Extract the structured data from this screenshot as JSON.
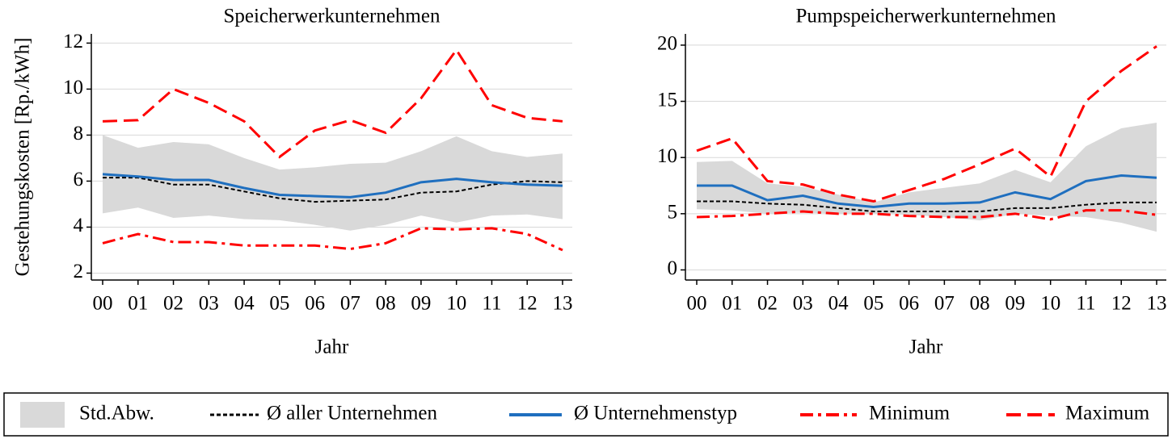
{
  "chart_data": [
    {
      "type": "line",
      "title": "Speicherwerkunternehmen",
      "xlabel": "Jahr",
      "ylabel": "Gestehungskosten [Rp./kWh]",
      "categories": [
        "00",
        "01",
        "02",
        "03",
        "04",
        "05",
        "06",
        "07",
        "08",
        "09",
        "10",
        "11",
        "12",
        "13"
      ],
      "ylim": [
        1.7,
        12.4
      ],
      "yticks": [
        2,
        4,
        6,
        8,
        10,
        12
      ],
      "grid": true,
      "series": [
        {
          "name": "Std.Abw.",
          "color": "#d9d9d9",
          "linestyle": "band",
          "upper": [
            8.0,
            7.45,
            7.7,
            7.6,
            7.0,
            6.5,
            6.6,
            6.75,
            6.8,
            7.3,
            7.95,
            7.3,
            7.05,
            7.2
          ],
          "lower": [
            4.6,
            4.85,
            4.4,
            4.5,
            4.35,
            4.3,
            4.1,
            3.85,
            4.1,
            4.5,
            4.2,
            4.5,
            4.55,
            4.35
          ]
        },
        {
          "name": "Ø aller Unternehmen",
          "color": "#000000",
          "linestyle": "dotted",
          "values": [
            6.15,
            6.15,
            5.85,
            5.85,
            5.55,
            5.25,
            5.1,
            5.15,
            5.2,
            5.5,
            5.55,
            5.85,
            6.0,
            5.95
          ]
        },
        {
          "name": "Ø Unternehmenstyp",
          "color": "#1f6fbf",
          "linestyle": "solid",
          "values": [
            6.3,
            6.2,
            6.05,
            6.05,
            5.7,
            5.4,
            5.35,
            5.3,
            5.5,
            5.95,
            6.1,
            5.95,
            5.85,
            5.8
          ]
        },
        {
          "name": "Minimum",
          "color": "#ff0000",
          "linestyle": "dashdot",
          "values": [
            3.3,
            3.7,
            3.35,
            3.35,
            3.2,
            3.2,
            3.2,
            3.05,
            3.3,
            3.95,
            3.9,
            3.95,
            3.7,
            3.0
          ]
        },
        {
          "name": "Maximum",
          "color": "#ff0000",
          "linestyle": "dashed",
          "values": [
            8.6,
            8.65,
            10.0,
            9.4,
            8.6,
            7.05,
            8.2,
            8.65,
            8.1,
            9.6,
            11.7,
            9.3,
            8.75,
            8.6
          ]
        }
      ]
    },
    {
      "type": "line",
      "title": "Pumpspeicherwerkunternehmen",
      "xlabel": "Jahr",
      "categories": [
        "00",
        "01",
        "02",
        "03",
        "04",
        "05",
        "06",
        "07",
        "08",
        "09",
        "10",
        "11",
        "12",
        "13"
      ],
      "ylim": [
        -0.9,
        21
      ],
      "yticks": [
        0,
        5,
        10,
        15,
        20
      ],
      "grid": true,
      "series": [
        {
          "name": "Std.Abw.",
          "color": "#d9d9d9",
          "linestyle": "band",
          "upper": [
            9.6,
            9.7,
            7.7,
            7.4,
            6.7,
            6.0,
            6.9,
            7.3,
            7.7,
            8.9,
            7.8,
            11.0,
            12.6,
            13.1
          ],
          "lower": [
            5.4,
            5.3,
            5.0,
            5.1,
            5.0,
            5.0,
            4.9,
            4.7,
            4.4,
            5.0,
            4.8,
            4.7,
            4.2,
            3.4
          ]
        },
        {
          "name": "Ø aller Unternehmen",
          "color": "#000000",
          "linestyle": "dotted",
          "values": [
            6.1,
            6.1,
            5.9,
            5.8,
            5.5,
            5.2,
            5.2,
            5.2,
            5.2,
            5.5,
            5.5,
            5.8,
            6.0,
            6.0
          ]
        },
        {
          "name": "Ø Unternehmenstyp",
          "color": "#1f6fbf",
          "linestyle": "solid",
          "values": [
            7.5,
            7.5,
            6.2,
            6.6,
            5.9,
            5.6,
            5.9,
            5.9,
            6.0,
            6.9,
            6.3,
            7.9,
            8.4,
            8.2
          ]
        },
        {
          "name": "Minimum",
          "color": "#ff0000",
          "linestyle": "dashdot",
          "values": [
            4.7,
            4.8,
            5.0,
            5.2,
            5.0,
            5.0,
            4.8,
            4.7,
            4.7,
            5.0,
            4.5,
            5.3,
            5.3,
            4.9
          ]
        },
        {
          "name": "Maximum",
          "color": "#ff0000",
          "linestyle": "dashed",
          "values": [
            10.6,
            11.7,
            7.9,
            7.6,
            6.7,
            6.1,
            7.1,
            8.1,
            9.4,
            10.8,
            8.3,
            15.0,
            17.7,
            19.9
          ]
        }
      ]
    }
  ]
}
